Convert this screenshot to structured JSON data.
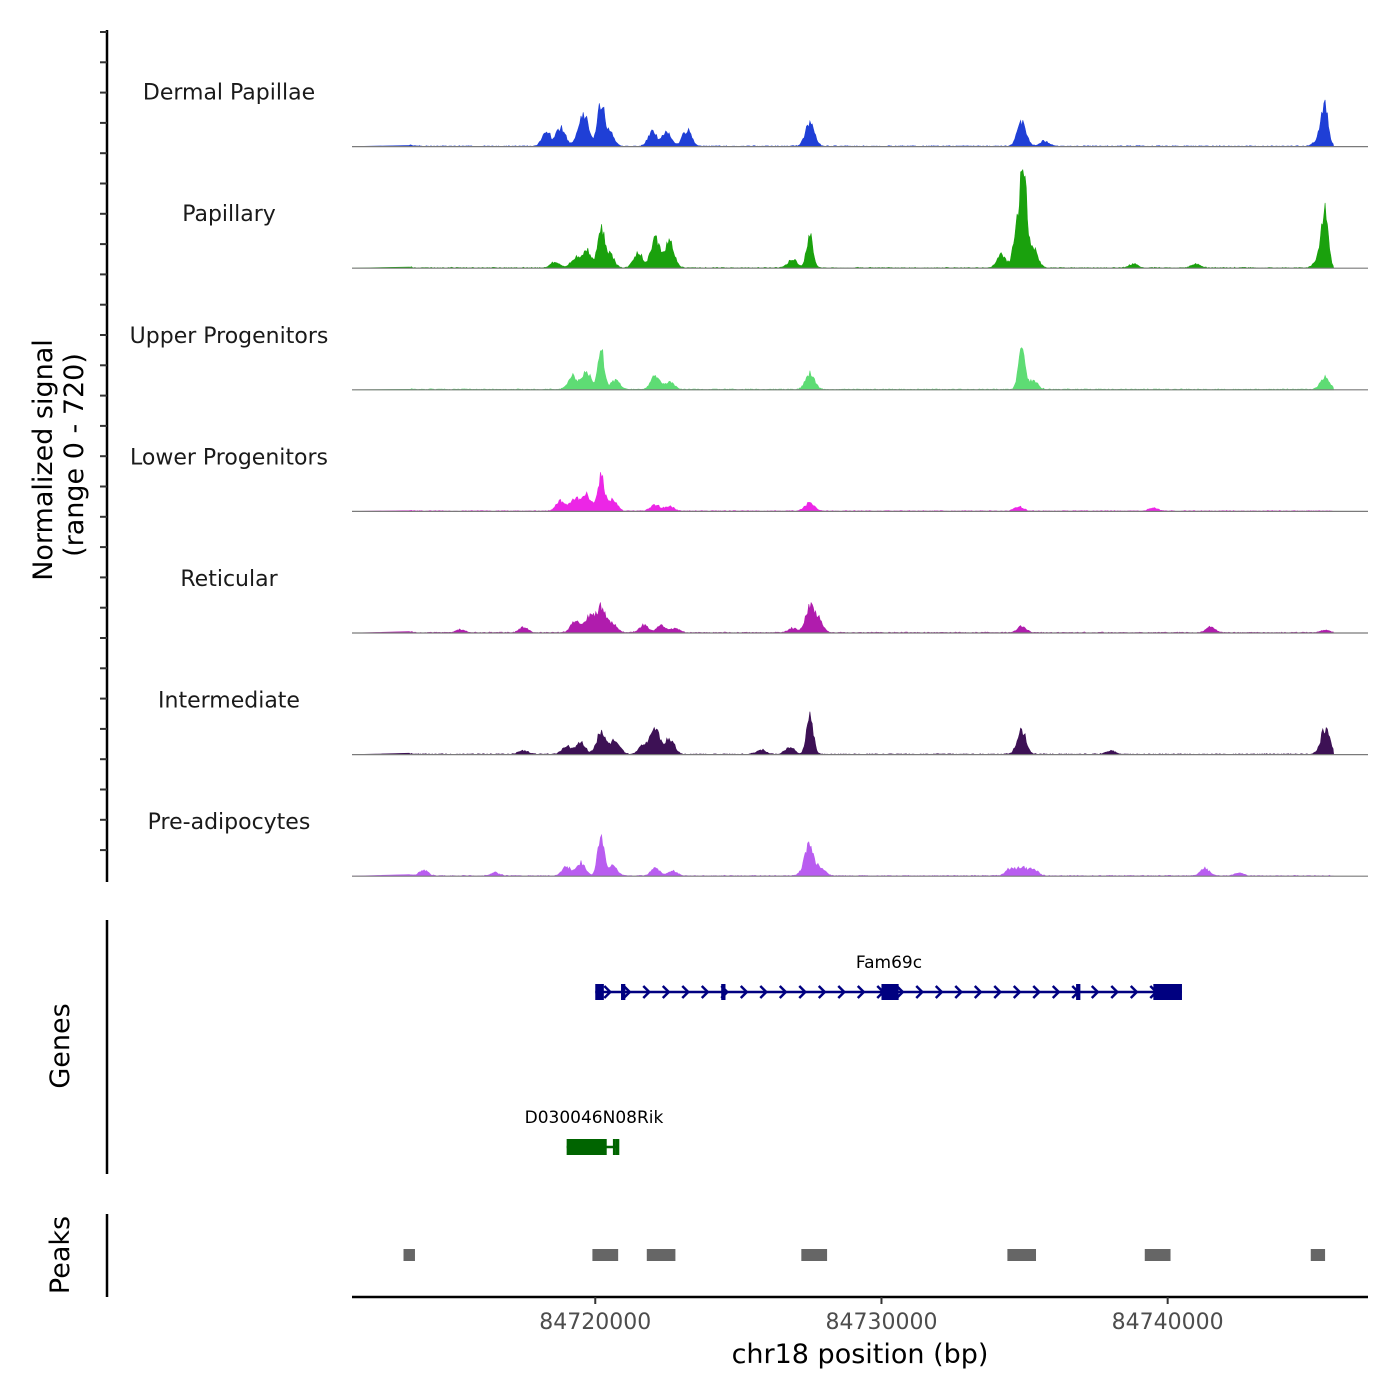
{
  "chart_data": {
    "type": "area",
    "title": "",
    "ylabel_line1": "Normalized signal",
    "ylabel_line2": "(range 0 - 720)",
    "y_range": [
      0,
      720
    ],
    "xlabel": "chr18 position (bp)",
    "x_range": [
      84711500,
      84747000
    ],
    "x_ticks": [
      {
        "value": 84720000,
        "label": "84720000"
      },
      {
        "value": 84730000,
        "label": "84730000"
      },
      {
        "value": 84740000,
        "label": "84740000"
      }
    ],
    "tracks": [
      {
        "name": "Dermal Papillae",
        "color": "#1f3fd6",
        "peaks": [
          [
            84713300,
            18
          ],
          [
            84718300,
            90
          ],
          [
            84718800,
            130
          ],
          [
            84719500,
            140
          ],
          [
            84719700,
            120
          ],
          [
            84720200,
            300
          ],
          [
            84720500,
            90
          ],
          [
            84722000,
            95
          ],
          [
            84722500,
            90
          ],
          [
            84723200,
            110
          ],
          [
            84727500,
            160
          ],
          [
            84734900,
            170
          ],
          [
            84735700,
            35
          ],
          [
            84745300,
            60
          ],
          [
            84745500,
            260
          ]
        ]
      },
      {
        "name": "Papillary",
        "color": "#1aa10d",
        "peaks": [
          [
            84713300,
            20
          ],
          [
            84718600,
            40
          ],
          [
            84719300,
            70
          ],
          [
            84719700,
            120
          ],
          [
            84720200,
            260
          ],
          [
            84720500,
            90
          ],
          [
            84721500,
            100
          ],
          [
            84722100,
            190
          ],
          [
            84722600,
            180
          ],
          [
            84726900,
            60
          ],
          [
            84727500,
            230
          ],
          [
            84734200,
            90
          ],
          [
            84734700,
            230
          ],
          [
            84734950,
            720
          ],
          [
            84735300,
            140
          ],
          [
            84738800,
            25
          ],
          [
            84741000,
            25
          ],
          [
            84745300,
            80
          ],
          [
            84745500,
            360
          ]
        ]
      },
      {
        "name": "Upper Progenitors",
        "color": "#5edc74",
        "peaks": [
          [
            84713300,
            8
          ],
          [
            84719200,
            90
          ],
          [
            84719700,
            120
          ],
          [
            84720200,
            270
          ],
          [
            84720700,
            60
          ],
          [
            84722100,
            100
          ],
          [
            84722600,
            50
          ],
          [
            84727500,
            110
          ],
          [
            84734900,
            270
          ],
          [
            84735300,
            60
          ],
          [
            84745500,
            85
          ]
        ]
      },
      {
        "name": "Lower Progenitors",
        "color": "#ec26e6",
        "peaks": [
          [
            84713300,
            10
          ],
          [
            84718800,
            70
          ],
          [
            84719300,
            80
          ],
          [
            84719700,
            110
          ],
          [
            84720200,
            250
          ],
          [
            84720600,
            80
          ],
          [
            84722100,
            45
          ],
          [
            84722600,
            30
          ],
          [
            84727500,
            60
          ],
          [
            84734800,
            30
          ],
          [
            84739500,
            20
          ]
        ]
      },
      {
        "name": "Reticular",
        "color": "#b01cad",
        "peaks": [
          [
            84713300,
            20
          ],
          [
            84715300,
            20
          ],
          [
            84717500,
            35
          ],
          [
            84719300,
            80
          ],
          [
            84719800,
            110
          ],
          [
            84720200,
            170
          ],
          [
            84720600,
            60
          ],
          [
            84721700,
            50
          ],
          [
            84722300,
            50
          ],
          [
            84722800,
            30
          ],
          [
            84726900,
            30
          ],
          [
            84727500,
            170
          ],
          [
            84727800,
            80
          ],
          [
            84734900,
            40
          ],
          [
            84741500,
            40
          ],
          [
            84745500,
            20
          ]
        ]
      },
      {
        "name": "Intermediate",
        "color": "#3d1155",
        "peaks": [
          [
            84713300,
            15
          ],
          [
            84717500,
            25
          ],
          [
            84719000,
            60
          ],
          [
            84719500,
            80
          ],
          [
            84720200,
            150
          ],
          [
            84720700,
            100
          ],
          [
            84721700,
            70
          ],
          [
            84722100,
            180
          ],
          [
            84722600,
            110
          ],
          [
            84725800,
            30
          ],
          [
            84726800,
            50
          ],
          [
            84727500,
            270
          ],
          [
            84734900,
            160
          ],
          [
            84738000,
            25
          ],
          [
            84745500,
            170
          ]
        ]
      },
      {
        "name": "Pre-adipocytes",
        "color": "#b95df0",
        "peaks": [
          [
            84713300,
            20
          ],
          [
            84714000,
            35
          ],
          [
            84716500,
            20
          ],
          [
            84719000,
            60
          ],
          [
            84719500,
            90
          ],
          [
            84720200,
            270
          ],
          [
            84720600,
            70
          ],
          [
            84722100,
            50
          ],
          [
            84722700,
            35
          ],
          [
            84727400,
            70
          ],
          [
            84727500,
            150
          ],
          [
            84727900,
            50
          ],
          [
            84734500,
            50
          ],
          [
            84734900,
            60
          ],
          [
            84735300,
            50
          ],
          [
            84741300,
            50
          ],
          [
            84742500,
            20
          ]
        ]
      }
    ],
    "genes": [
      {
        "name": "Fam69c",
        "color": "#000080",
        "start": 84720000,
        "end": 84740500,
        "strand": "+",
        "exons": [
          [
            84720000,
            84720300
          ],
          [
            84720900,
            84721050
          ],
          [
            84724400,
            84724550
          ],
          [
            84730000,
            84730600
          ],
          [
            84736800,
            84736950
          ],
          [
            84739500,
            84740500
          ]
        ]
      },
      {
        "name": "D030046N08Rik",
        "color": "#006400",
        "start": 84719000,
        "end": 84720800,
        "strand": "-",
        "exons": [
          [
            84719000,
            84720400
          ],
          [
            84720700,
            84720800
          ]
        ]
      }
    ],
    "peaks_track": {
      "label": "Peaks",
      "color": "#666666",
      "regions": [
        [
          84713300,
          84713700
        ],
        [
          84719900,
          84720800
        ],
        [
          84721800,
          84722800
        ],
        [
          84727200,
          84728100
        ],
        [
          84734400,
          84735400
        ],
        [
          84739200,
          84740100
        ],
        [
          84745000,
          84745500
        ]
      ]
    },
    "genes_label": "Genes"
  }
}
